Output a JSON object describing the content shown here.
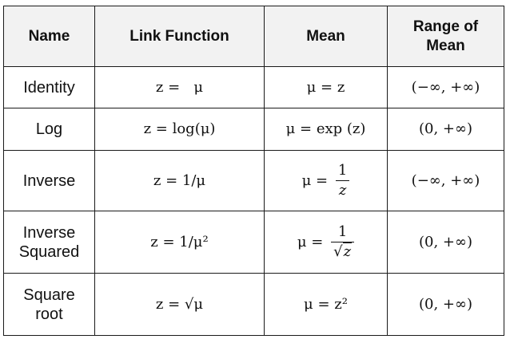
{
  "table": {
    "headers": {
      "name": "Name",
      "link": "Link Function",
      "mean": "Mean",
      "range_line1": "Range of",
      "range_line2": "Mean"
    },
    "rows": [
      {
        "name_line1": "Identity",
        "name_line2": "",
        "link": "z =   μ",
        "mean": "μ = z",
        "range": "(−∞, +∞)"
      },
      {
        "name_line1": "Log",
        "name_line2": "",
        "link": "z = log(μ)",
        "mean": "μ = exp (z)",
        "range": "(0, +∞)"
      },
      {
        "name_line1": "Inverse",
        "name_line2": "",
        "link": "z = 1/μ",
        "mean_lhs": "μ =",
        "mean_num": "1",
        "mean_den": "z",
        "range": "(−∞, +∞)"
      },
      {
        "name_line1": "Inverse",
        "name_line2": "Squared",
        "link": "z = 1/μ²",
        "mean_lhs": "μ =",
        "mean_num": "1",
        "mean_den_root": "√",
        "mean_den": "z",
        "range": "(0, +∞)"
      },
      {
        "name_line1": "Square",
        "name_line2": "root",
        "link": "z = √μ",
        "mean": "μ = z²",
        "range": "(0, +∞)"
      }
    ]
  }
}
